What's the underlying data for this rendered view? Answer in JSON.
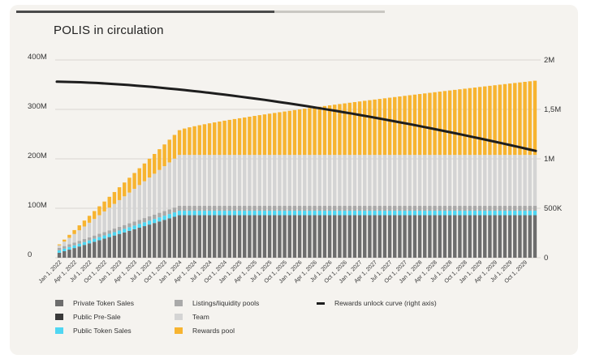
{
  "title": "POLIS in circulation",
  "chart_data": {
    "type": "bar",
    "stacked": true,
    "title": "POLIS in circulation",
    "y_left": {
      "ticks": [
        "400M",
        "300M",
        "200M",
        "100M",
        "0"
      ],
      "min": 0,
      "max": 400000000
    },
    "y_right": {
      "ticks": [
        "2M",
        "1,5M",
        "1M",
        "500K",
        "0"
      ],
      "min": 0,
      "max": 2000000
    },
    "x_tick_labels": [
      "Jan 1, 2022",
      "Apr 1, 2022",
      "Jul 1, 2022",
      "Oct 1, 2022",
      "Jan 1, 2023",
      "Apr 1, 2023",
      "Jul 1, 2023",
      "Oct 1, 2023",
      "Jan 1, 2024",
      "Apr 1, 2024",
      "Jul 1, 2024",
      "Oct 1, 2024",
      "Jan 1, 2025",
      "Apr 1, 2025",
      "Jul 1, 2025",
      "Oct 1, 2025",
      "Jan 1, 2026",
      "Apr 1, 2026",
      "Jul 1, 2026",
      "Oct 1, 2026",
      "Jan 1, 2027",
      "Apr 1, 2027",
      "Jul 1, 2027",
      "Oct 1, 2027",
      "Jan 1, 2028",
      "Apr 1, 2028",
      "Jul 1, 2028",
      "Oct 1, 2028",
      "Jan 1, 2029",
      "Apr 1, 2029",
      "Jul 1, 2029",
      "Oct 1, 2029"
    ],
    "bars_per_label": 3,
    "series": [
      {
        "name": "Private Token Sales",
        "color": "#6d6d6d",
        "start": 10000000,
        "end": 86000000,
        "vesting_end_index": 24
      },
      {
        "name": "Public Pre-Sale",
        "color": "#3a3a3a",
        "start": 0,
        "end": 0,
        "vesting_end_index": 24
      },
      {
        "name": "Public Token Sales",
        "color": "#4fd6f2",
        "start": 5000000,
        "end": 9000000,
        "vesting_end_index": 24
      },
      {
        "name": "Listings/liquidity pools",
        "color": "#a9a9a9",
        "start": 5000000,
        "end": 10000000,
        "vesting_end_index": 24
      },
      {
        "name": "Team",
        "color": "#d4d4d4",
        "start": 5000000,
        "end": 103000000,
        "vesting_end_index": 24
      },
      {
        "name": "Rewards pool",
        "color": "#f7b430",
        "start": 2000000,
        "end": 50000000,
        "vesting_end_index": 24,
        "later_end": 150000000
      }
    ],
    "line": {
      "name": "Rewards unlock curve (right axis)",
      "axis": "right",
      "color": "#1e1e1e",
      "start": 1780000,
      "end": 1080000
    },
    "grid": true,
    "legend_position": "bottom"
  },
  "legend": [
    {
      "label": "Private Token Sales",
      "color": "#6d6d6d",
      "kind": "box"
    },
    {
      "label": "Public Pre-Sale",
      "color": "#3a3a3a",
      "kind": "box"
    },
    {
      "label": "Public Token Sales",
      "color": "#4fd6f2",
      "kind": "box"
    },
    {
      "label": "Listings/liquidity pools",
      "color": "#a9a9a9",
      "kind": "box"
    },
    {
      "label": "Team",
      "color": "#d4d4d4",
      "kind": "box"
    },
    {
      "label": "Rewards pool",
      "color": "#f7b430",
      "kind": "box"
    },
    {
      "label": "Rewards unlock curve (right axis)",
      "color": "#1e1e1e",
      "kind": "line"
    }
  ]
}
